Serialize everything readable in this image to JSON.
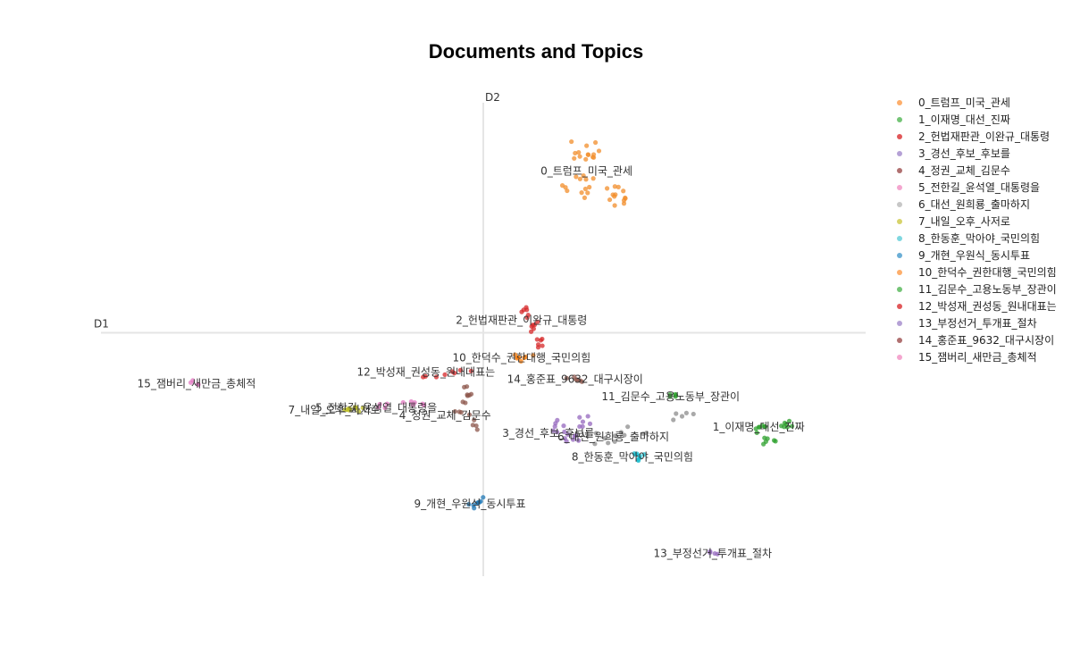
{
  "chart_data": {
    "type": "scatter",
    "title": "Documents and Topics",
    "xlabel": "D1",
    "ylabel": "D2",
    "xlim": [
      -10,
      10
    ],
    "ylim": [
      -6,
      6
    ],
    "grid": false,
    "legend_position": "right",
    "series": [
      {
        "name": "0_트럼프_미국_관세",
        "color": "#fdae6b",
        "dot_color": "#f28e2b",
        "spread": [
          0.9,
          0.55
        ],
        "n": 40,
        "points": [
          [
            2.6,
            4.5
          ],
          [
            2.5,
            3.6
          ],
          [
            3.5,
            3.4
          ]
        ],
        "label_xy": [
          2.7,
          3.98
        ]
      },
      {
        "name": "1_이재명_대선_진짜",
        "color": "#74c476",
        "dot_color": "#2ca02c",
        "spread": [
          0.35,
          0.25
        ],
        "n": 20,
        "points": [
          [
            7.3,
            -2.4
          ],
          [
            7.9,
            -2.3
          ],
          [
            7.5,
            -2.7
          ]
        ],
        "label_xy": [
          7.2,
          -2.32
        ]
      },
      {
        "name": "2_헌법재판관_이완규_대통령",
        "color": "#e15759",
        "dot_color": "#d62728",
        "spread": [
          0.25,
          0.35
        ],
        "n": 18,
        "points": [
          [
            1.1,
            0.5
          ],
          [
            1.3,
            0.2
          ],
          [
            1.5,
            -0.3
          ]
        ],
        "label_xy": [
          1.0,
          0.31
        ]
      },
      {
        "name": "3_경선_후보_후보를",
        "color": "#b5a1d6",
        "dot_color": "#9467bd",
        "spread": [
          0.45,
          0.3
        ],
        "n": 20,
        "points": [
          [
            2.0,
            -2.3
          ],
          [
            2.3,
            -2.6
          ],
          [
            2.7,
            -2.2
          ]
        ],
        "label_xy": [
          1.7,
          -2.48
        ]
      },
      {
        "name": "4_정권_교체_김문수",
        "color": "#b07070",
        "dot_color": "#8c564b",
        "spread": [
          0.3,
          0.4
        ],
        "n": 16,
        "points": [
          [
            -0.4,
            -1.5
          ],
          [
            -0.3,
            -2.2
          ],
          [
            -0.6,
            -1.9
          ]
        ],
        "label_xy": [
          -1.0,
          -2.04
        ]
      },
      {
        "name": "5_전한길_윤석열_대통령을",
        "color": "#f4a6cf",
        "dot_color": "#e377c2",
        "spread": [
          0.5,
          0.12
        ],
        "n": 10,
        "points": [
          [
            -2.6,
            -1.8
          ],
          [
            -2.0,
            -1.75
          ],
          [
            -1.6,
            -1.8
          ]
        ],
        "label_xy": [
          -2.8,
          -1.85
        ]
      },
      {
        "name": "6_대선_원희룡_출마하지",
        "color": "#c7c7c7",
        "dot_color": "#8c8c8c",
        "spread": [
          0.9,
          0.3
        ],
        "n": 16,
        "points": [
          [
            3.2,
            -2.6
          ],
          [
            4.0,
            -2.4
          ],
          [
            5.2,
            -2.1
          ]
        ],
        "label_xy": [
          3.4,
          -2.56
        ]
      },
      {
        "name": "7_내일_오후_사저로",
        "color": "#d7d36a",
        "dot_color": "#bcbd22",
        "spread": [
          0.3,
          0.12
        ],
        "n": 10,
        "points": [
          [
            -3.6,
            -1.9
          ],
          [
            -3.4,
            -1.85
          ],
          [
            -3.2,
            -1.9
          ]
        ],
        "label_xy": [
          -3.9,
          -1.9
        ]
      },
      {
        "name": "8_한동훈_막아야_국민의힘",
        "color": "#7fd7e0",
        "dot_color": "#17becf",
        "spread": [
          0.25,
          0.1
        ],
        "n": 8,
        "points": [
          [
            3.9,
            -3.0
          ],
          [
            4.1,
            -3.1
          ],
          [
            4.2,
            -3.0
          ]
        ],
        "label_xy": [
          3.9,
          -3.06
        ]
      },
      {
        "name": "9_개현_우원식_동시투표",
        "color": "#6baed6",
        "dot_color": "#1f77b4",
        "spread": [
          0.2,
          0.15
        ],
        "n": 8,
        "points": [
          [
            -0.3,
            -4.3
          ],
          [
            -0.2,
            -4.2
          ],
          [
            -0.1,
            -4.1
          ]
        ],
        "label_xy": [
          -0.35,
          -4.22
        ]
      },
      {
        "name": "10_한덕수_권한대행_국민의힘",
        "color": "#fdae6b",
        "dot_color": "#ff7f0e",
        "spread": [
          0.25,
          0.12
        ],
        "n": 8,
        "points": [
          [
            0.8,
            -0.6
          ],
          [
            1.0,
            -0.65
          ],
          [
            1.2,
            -0.55
          ]
        ],
        "label_xy": [
          1.0,
          -0.62
        ]
      },
      {
        "name": "11_김문수_고용노동부_장관이",
        "color": "#74c476",
        "dot_color": "#2ca02c",
        "spread": [
          0.15,
          0.08
        ],
        "n": 5,
        "points": [
          [
            4.9,
            -1.55
          ],
          [
            5.0,
            -1.5
          ],
          [
            5.1,
            -1.6
          ]
        ],
        "label_xy": [
          4.9,
          -1.57
        ]
      },
      {
        "name": "12_박성재_권성동_원내대표는",
        "color": "#e15759",
        "dot_color": "#d62728",
        "spread": [
          0.5,
          0.1
        ],
        "n": 8,
        "points": [
          [
            -1.4,
            -1.05
          ],
          [
            -0.8,
            -1.0
          ],
          [
            -0.4,
            -0.9
          ]
        ],
        "label_xy": [
          -1.5,
          -0.97
        ]
      },
      {
        "name": "13_부정선거_투개표_절차",
        "color": "#b5a1d6",
        "dot_color": "#9467bd",
        "spread": [
          0.15,
          0.05
        ],
        "n": 4,
        "points": [
          [
            6.0,
            -5.4
          ],
          [
            6.1,
            -5.45
          ]
        ],
        "label_xy": [
          6.0,
          -5.44
        ]
      },
      {
        "name": "14_홍준표_9632_대구시장이",
        "color": "#b07070",
        "dot_color": "#8c564b",
        "spread": [
          0.25,
          0.08
        ],
        "n": 6,
        "points": [
          [
            2.3,
            -1.1
          ],
          [
            2.5,
            -1.15
          ],
          [
            2.6,
            -1.2
          ]
        ],
        "label_xy": [
          2.4,
          -1.14
        ]
      },
      {
        "name": "15_잼버리_새만금_총체적",
        "color": "#f4a6cf",
        "dot_color": "#e377c2",
        "spread": [
          0.12,
          0.06
        ],
        "n": 4,
        "points": [
          [
            -7.6,
            -1.2
          ],
          [
            -7.5,
            -1.25
          ]
        ],
        "label_xy": [
          -7.5,
          -1.25
        ]
      }
    ]
  }
}
